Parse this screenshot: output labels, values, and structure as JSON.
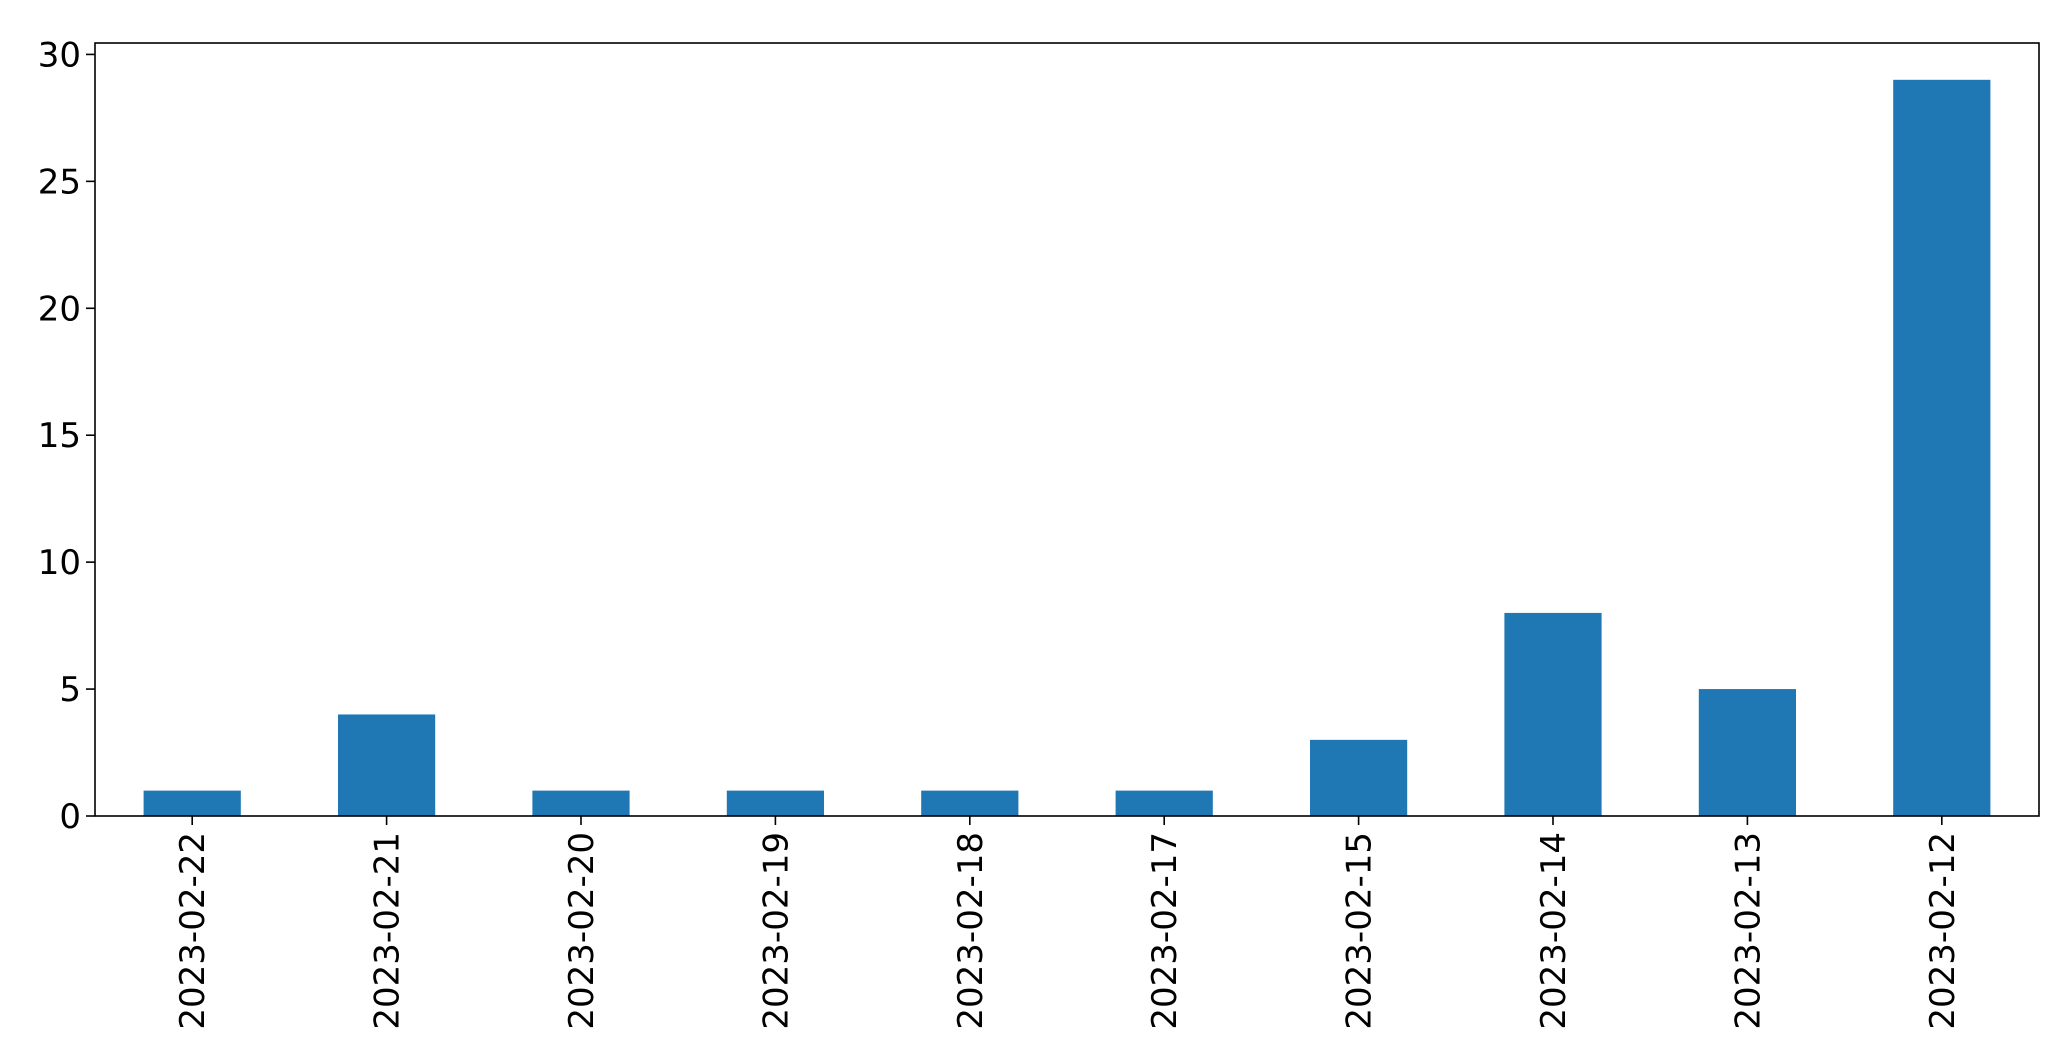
{
  "chart_data": {
    "type": "bar",
    "title": "",
    "xlabel": "",
    "ylabel": "",
    "categories": [
      "2023-02-22",
      "2023-02-21",
      "2023-02-20",
      "2023-02-19",
      "2023-02-18",
      "2023-02-17",
      "2023-02-15",
      "2023-02-14",
      "2023-02-13",
      "2023-02-12"
    ],
    "values": [
      1,
      4,
      1,
      1,
      1,
      1,
      3,
      8,
      5,
      29
    ],
    "ylim": [
      0,
      30.45
    ],
    "yticks": [
      0,
      5,
      10,
      15,
      20,
      25,
      30
    ],
    "ytick_labels": [
      "0",
      "5",
      "10",
      "15",
      "20",
      "25",
      "30"
    ],
    "xtick_rotation": "vertical",
    "grid": false,
    "legend": "none",
    "bar_color": "#1f77b4",
    "axes_color": "#000000",
    "background": "#ffffff"
  }
}
